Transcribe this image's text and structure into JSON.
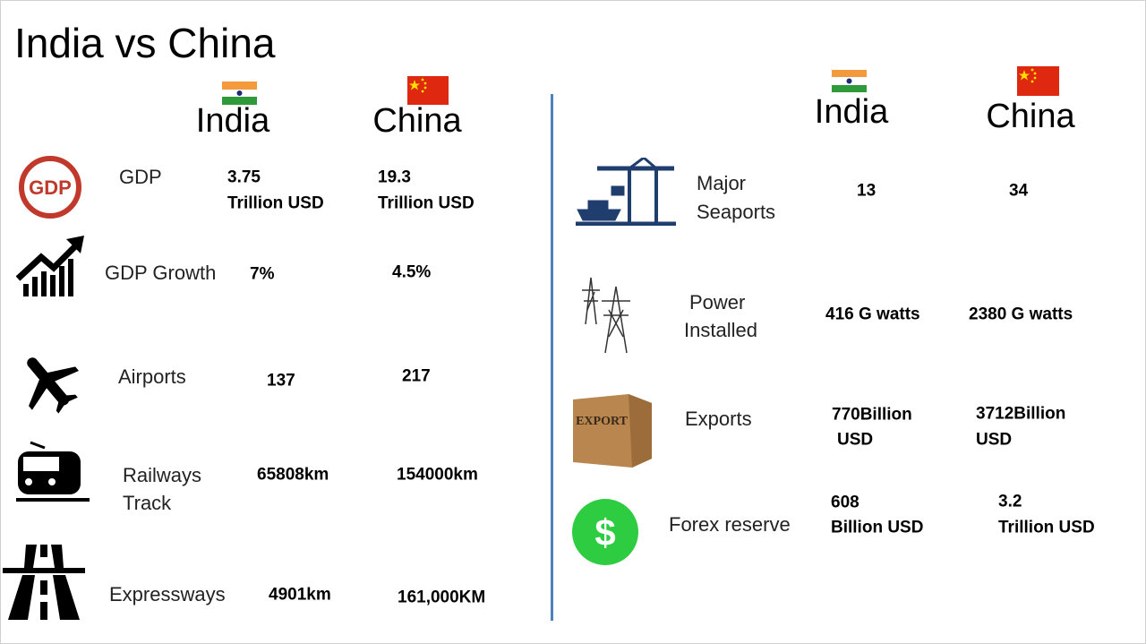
{
  "title": "India vs China",
  "left": {
    "headers": {
      "india": "India",
      "china": "China"
    },
    "rows": [
      {
        "label": [
          "GDP"
        ],
        "india": [
          "3.75",
          "Trillion USD"
        ],
        "china": [
          "19.3",
          "Trillion USD"
        ]
      },
      {
        "label": [
          "GDP Growth"
        ],
        "india": [
          "7%"
        ],
        "china": [
          "4.5%"
        ]
      },
      {
        "label": [
          "Airports"
        ],
        "india": [
          "137"
        ],
        "china": [
          "217"
        ]
      },
      {
        "label": [
          "Railways",
          "Track"
        ],
        "india": [
          "65808km"
        ],
        "china": [
          "154000km"
        ]
      },
      {
        "label": [
          "Expressways"
        ],
        "india": [
          "4901km"
        ],
        "china": [
          "161,000KM"
        ]
      }
    ]
  },
  "right": {
    "headers": {
      "india": "India",
      "china": "China"
    },
    "rows": [
      {
        "label": [
          "Major",
          "Seaports"
        ],
        "india": [
          "13"
        ],
        "china": [
          "34"
        ]
      },
      {
        "label": [
          "Power",
          "Installed"
        ],
        "india": [
          "416 G watts"
        ],
        "china": [
          "2380 G watts"
        ]
      },
      {
        "label": [
          "Exports"
        ],
        "india": [
          "770Billion",
          "USD"
        ],
        "china": [
          "3712Billion",
          "USD"
        ]
      },
      {
        "label": [
          "Forex reserve"
        ],
        "india": [
          "608",
          "Billion USD"
        ],
        "china": [
          "3.2",
          "Trillion USD"
        ]
      }
    ]
  },
  "icons": {
    "gdp": "GDP",
    "export": "EXPORT",
    "forex": "$"
  }
}
